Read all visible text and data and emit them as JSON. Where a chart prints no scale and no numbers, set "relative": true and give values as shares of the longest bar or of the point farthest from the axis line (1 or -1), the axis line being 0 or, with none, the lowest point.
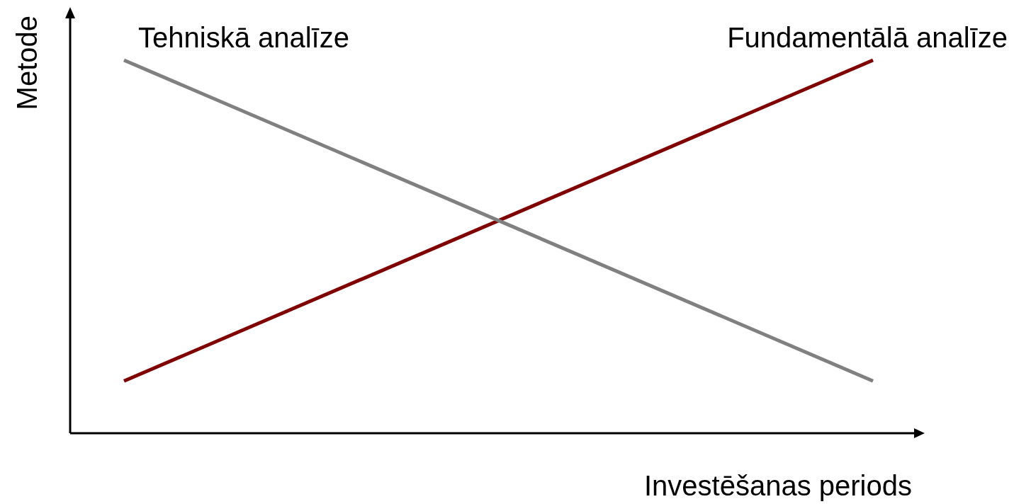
{
  "chart_data": {
    "type": "line",
    "relative": true,
    "xlabel": "Investēšanas periods",
    "ylabel": "Metode",
    "categories": [
      null,
      null
    ],
    "series": [
      {
        "name": "Tehniskā analīze",
        "color": "#808080",
        "values": [
          1,
          0.14
        ]
      },
      {
        "name": "Fundamentālā analīze",
        "color": "#800000",
        "values": [
          0.14,
          1
        ]
      }
    ],
    "legend": false,
    "marker": "none",
    "line_style": "solid"
  }
}
